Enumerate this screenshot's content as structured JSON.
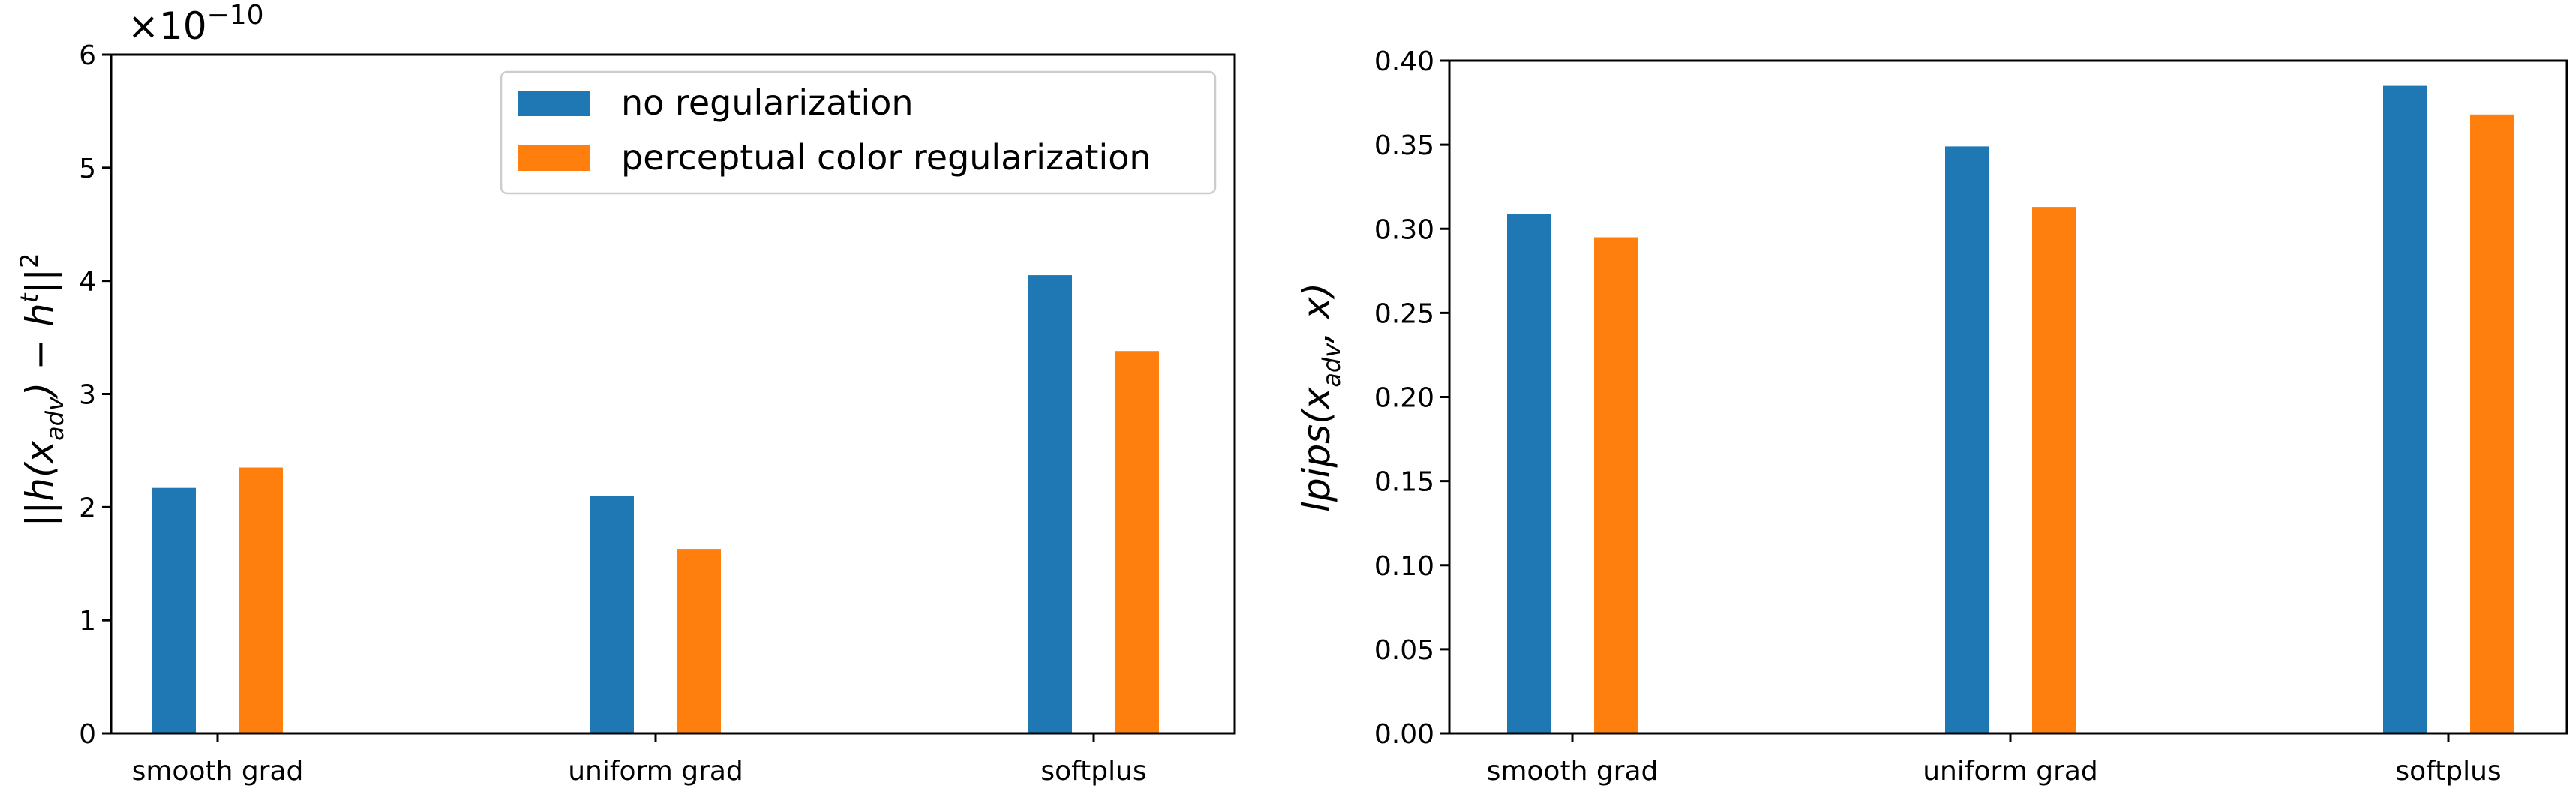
{
  "colors": {
    "no_reg": "#1f77b4",
    "perc_reg": "#ff7f0e"
  },
  "chart_data": [
    {
      "type": "bar",
      "categories": [
        "smooth grad",
        "uniform grad",
        "softplus"
      ],
      "series": [
        {
          "name": "no regularization",
          "values": [
            2.17,
            2.1,
            4.05
          ]
        },
        {
          "name": "perceptual color regularization",
          "values": [
            2.35,
            1.63,
            3.38
          ]
        }
      ],
      "ylim": [
        0,
        6
      ],
      "yticks": [
        "0",
        "1",
        "2",
        "3",
        "4",
        "5",
        "6"
      ],
      "ylabel": "||h(x_adv) − h^t||²",
      "scale_label": "×10^−10",
      "legend": "top-right"
    },
    {
      "type": "bar",
      "categories": [
        "smooth grad",
        "uniform grad",
        "softplus"
      ],
      "series": [
        {
          "values": [
            0.309,
            0.349,
            0.385
          ]
        },
        {
          "values": [
            0.295,
            0.313,
            0.368
          ]
        }
      ],
      "ylim": [
        0,
        0.4
      ],
      "yticks": [
        "0.00",
        "0.05",
        "0.10",
        "0.15",
        "0.20",
        "0.25",
        "0.30",
        "0.35",
        "0.40"
      ],
      "ylabel": "lpips(x_adv, x)"
    }
  ]
}
